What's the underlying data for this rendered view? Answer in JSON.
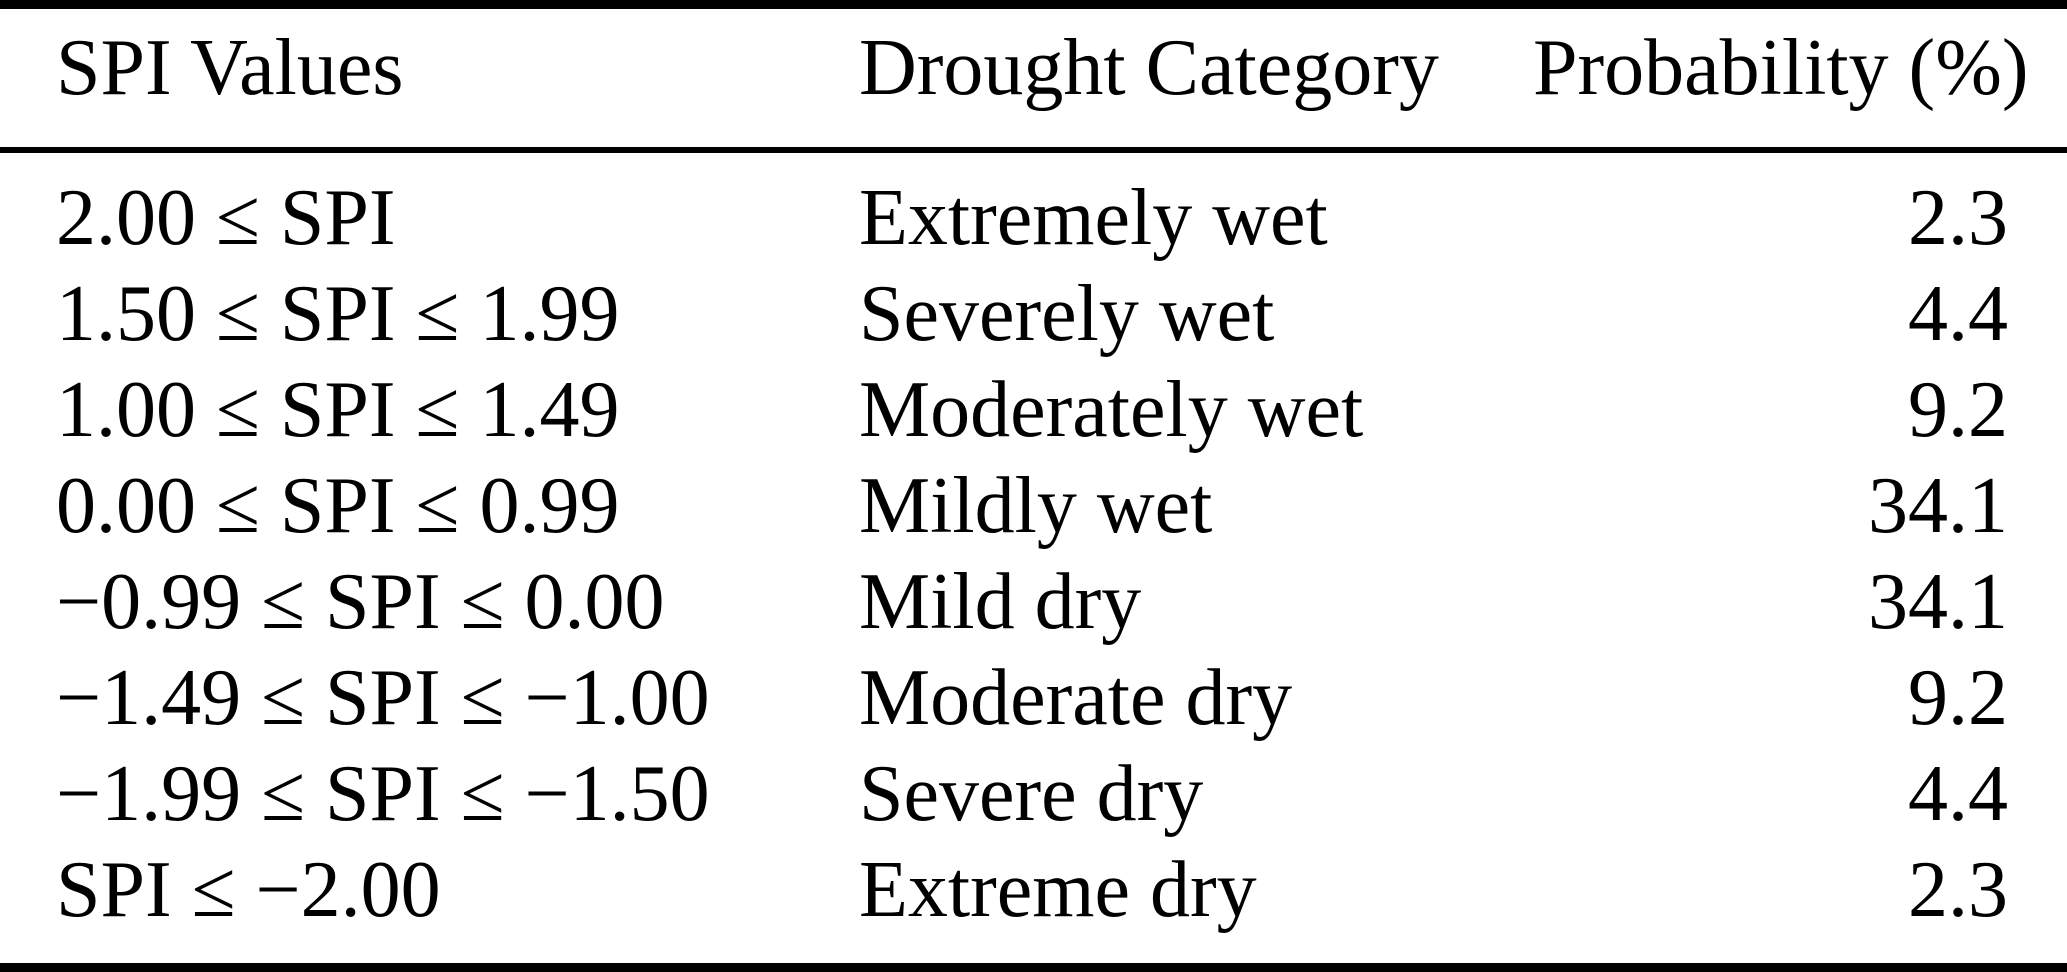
{
  "colors": {
    "text": "#000000",
    "background": "#ffffff",
    "rule": "#000000"
  },
  "table": {
    "columns": {
      "spi": "SPI Values",
      "category": "Drought Category",
      "probability": "Probability (%)"
    },
    "rows": [
      {
        "spi": "2.00 ≤ SPI",
        "category": "Extremely wet",
        "probability": "2.3"
      },
      {
        "spi": "1.50 ≤ SPI ≤ 1.99",
        "category": "Severely wet",
        "probability": "4.4"
      },
      {
        "spi": "1.00 ≤ SPI ≤ 1.49",
        "category": "Moderately wet",
        "probability": "9.2"
      },
      {
        "spi": "0.00 ≤ SPI ≤ 0.99",
        "category": "Mildly wet",
        "probability": "34.1"
      },
      {
        "spi": "−0.99 ≤ SPI ≤ 0.00",
        "category": "Mild dry",
        "probability": "34.1"
      },
      {
        "spi": "−1.49 ≤ SPI ≤ −1.00",
        "category": "Moderate dry",
        "probability": "9.2"
      },
      {
        "spi": "−1.99 ≤ SPI ≤ −1.50",
        "category": "Severe dry",
        "probability": "4.4"
      },
      {
        "spi": "SPI ≤ −2.00",
        "category": "Extreme dry",
        "probability": "2.3"
      }
    ]
  },
  "chart_data": {
    "type": "table",
    "title": "",
    "columns": [
      "SPI Values",
      "Drought Category",
      "Probability (%)"
    ],
    "rows": [
      [
        "2.00 ≤ SPI",
        "Extremely wet",
        2.3
      ],
      [
        "1.50 ≤ SPI ≤ 1.99",
        "Severely wet",
        4.4
      ],
      [
        "1.00 ≤ SPI ≤ 1.49",
        "Moderately wet",
        9.2
      ],
      [
        "0.00 ≤ SPI ≤ 0.99",
        "Mildly wet",
        34.1
      ],
      [
        "−0.99 ≤ SPI ≤ 0.00",
        "Mild dry",
        34.1
      ],
      [
        "−1.49 ≤ SPI ≤ −1.00",
        "Moderate dry",
        9.2
      ],
      [
        "−1.99 ≤ SPI ≤ −1.50",
        "Severe dry",
        4.4
      ],
      [
        "SPI ≤ −2.00",
        "Extreme dry",
        2.3
      ]
    ]
  }
}
